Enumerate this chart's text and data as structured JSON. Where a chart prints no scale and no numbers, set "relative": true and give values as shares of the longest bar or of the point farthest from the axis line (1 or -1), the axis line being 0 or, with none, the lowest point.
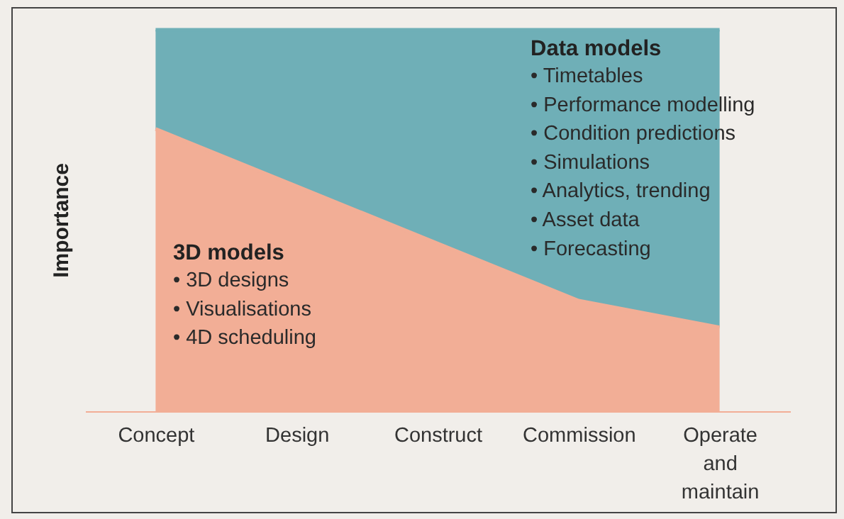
{
  "chart_data": {
    "type": "area",
    "relative": true,
    "stacked": true,
    "ylabel": "Importance",
    "categories": [
      "Concept",
      "Design",
      "Construct",
      "Commission",
      "Operate and maintain"
    ],
    "series": [
      {
        "name": "3D models",
        "color": "#f2ae96",
        "values": [
          0.74,
          0.59,
          0.44,
          0.29,
          0.22
        ]
      },
      {
        "name": "Data models",
        "color": "#6fafb7",
        "values": [
          0.26,
          0.41,
          0.56,
          0.71,
          0.78
        ]
      }
    ],
    "annotations": [
      "• 3D designs",
      "• Visualisations",
      "• 4D scheduling",
      "• Timetables",
      "• Performance modelling",
      "• Condition predictions",
      "• Simulations",
      "• Analytics, trending",
      "• Asset data",
      "• Forecasting"
    ]
  }
}
